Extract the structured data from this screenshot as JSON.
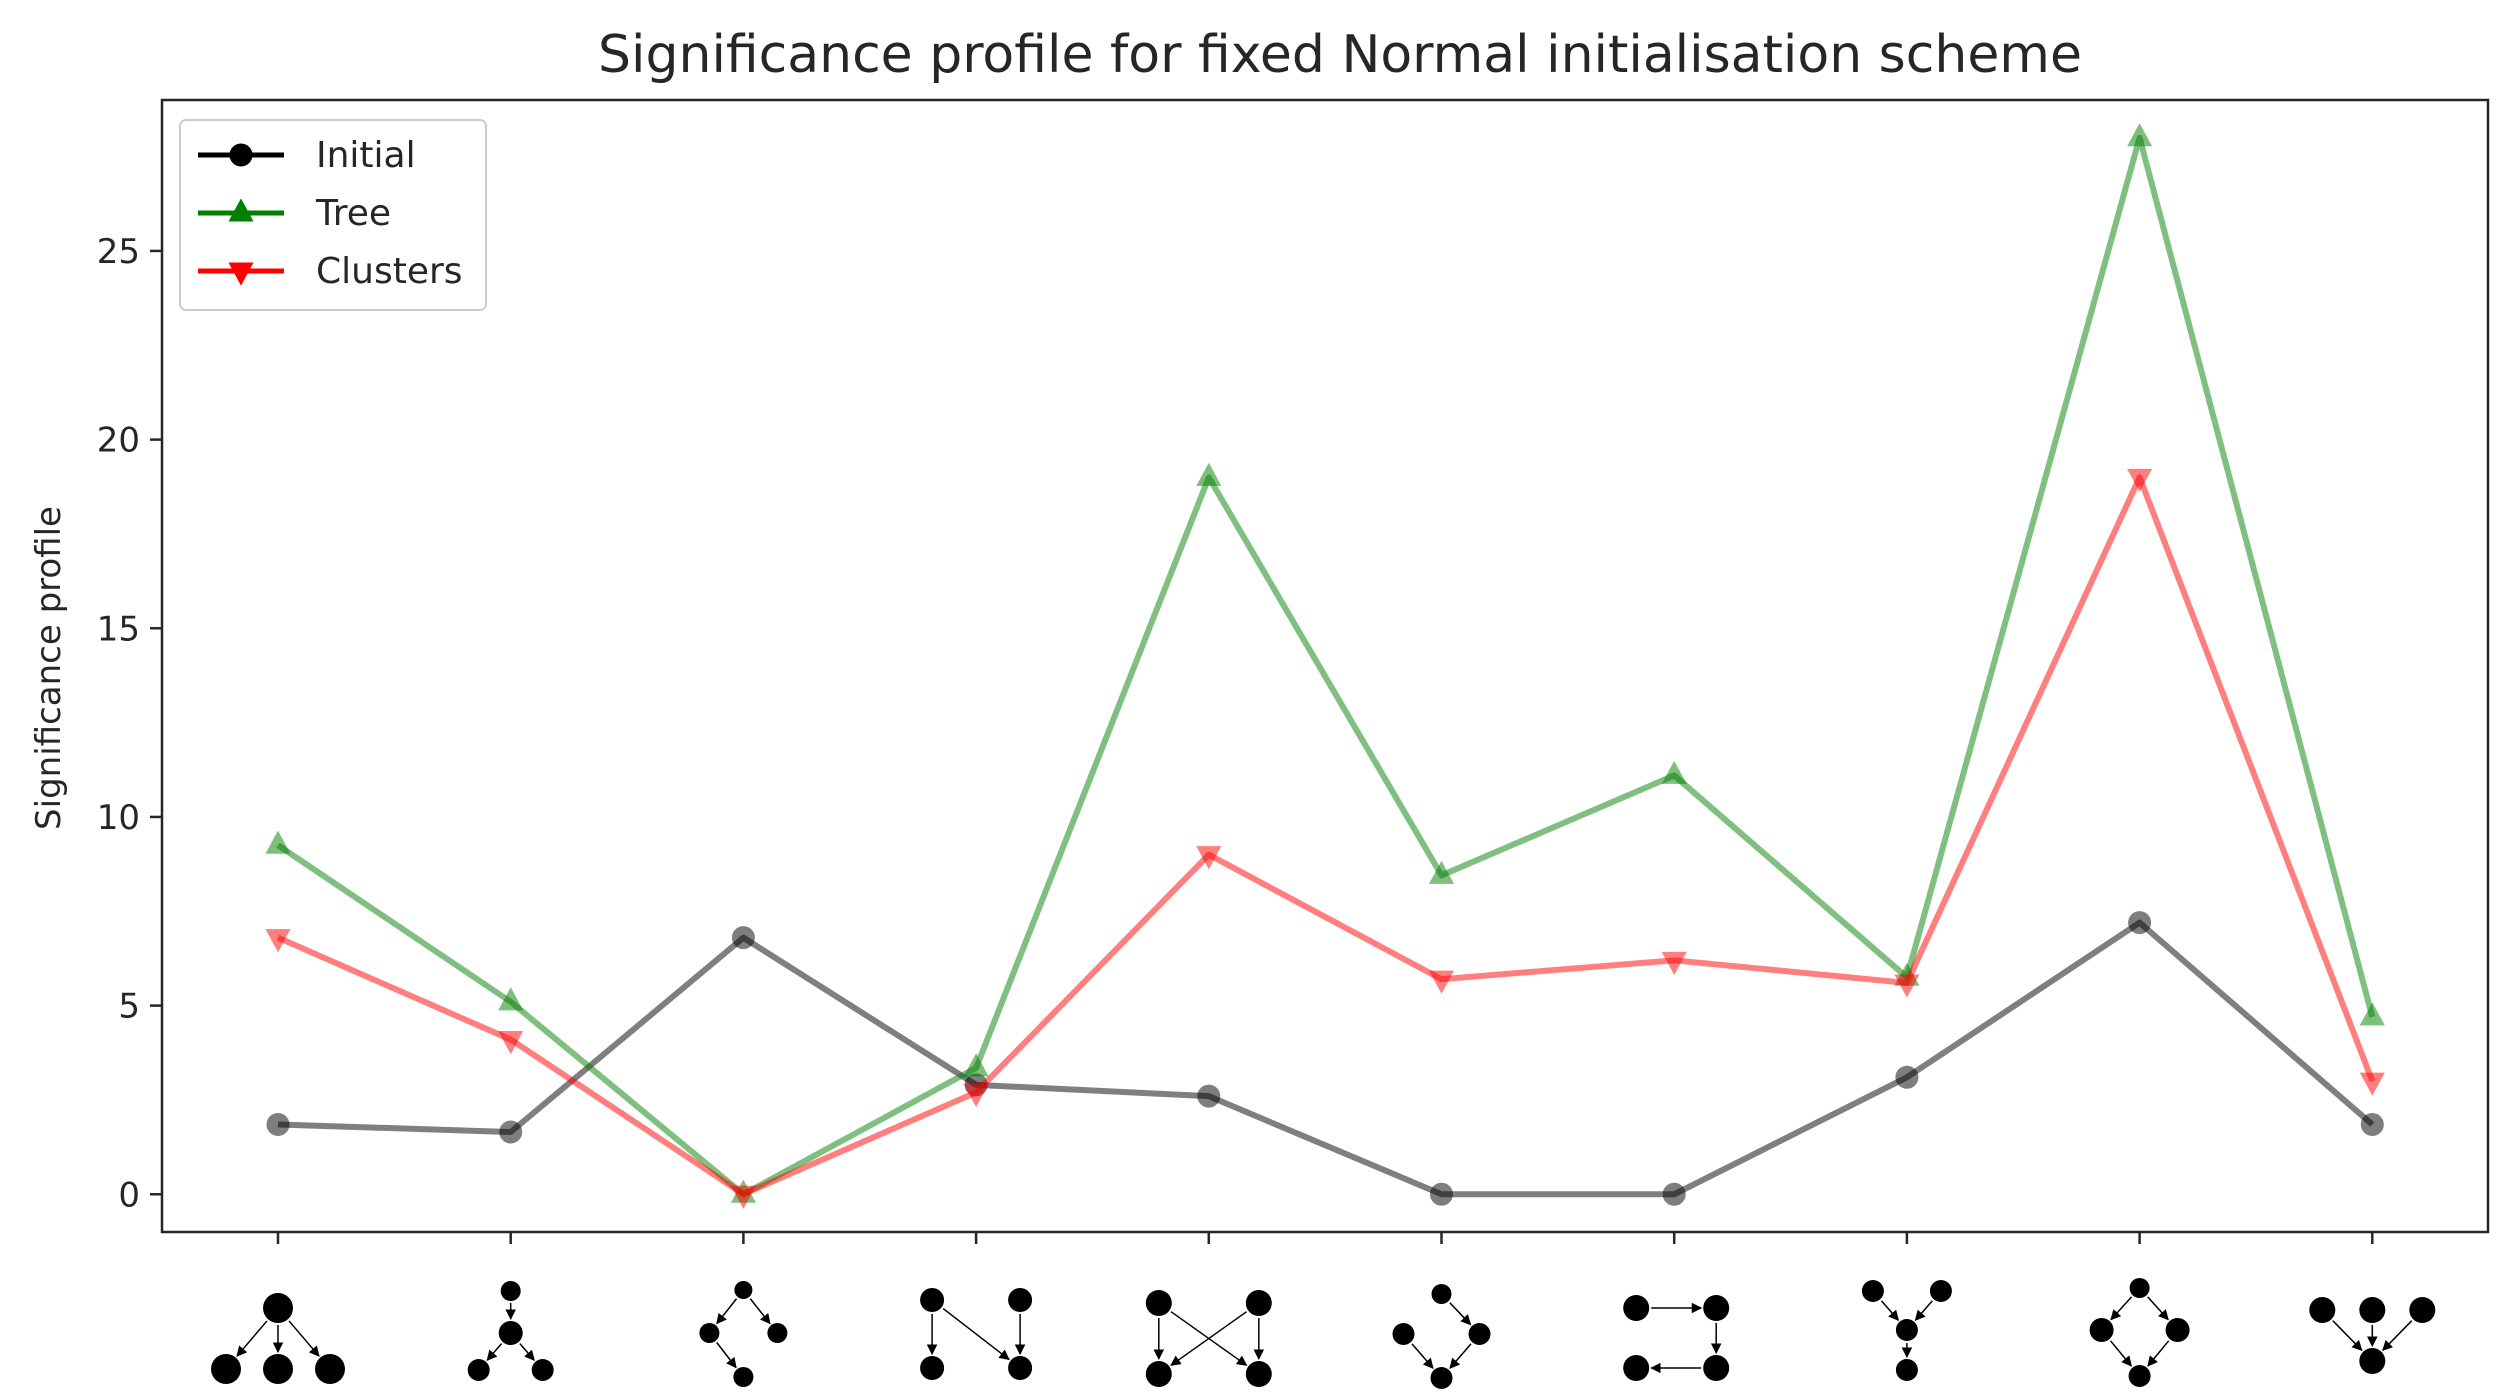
{
  "chart_data": {
    "type": "line",
    "title": "Significance profile for fixed Normal initialisation scheme",
    "xlabel": "",
    "ylabel": "Significance profile",
    "ylim": [
      -1,
      29
    ],
    "yticks": [
      0,
      5,
      10,
      15,
      20,
      25
    ],
    "grid": false,
    "legend_position": "top-left",
    "categories": [
      "motif-1",
      "motif-2",
      "motif-3",
      "motif-4",
      "motif-5",
      "motif-6",
      "motif-7",
      "motif-8",
      "motif-9",
      "motif-10"
    ],
    "series": [
      {
        "name": "Initial",
        "color": "#000000",
        "marker": "circle",
        "values": [
          1.85,
          1.65,
          6.8,
          2.9,
          2.6,
          0.0,
          0.0,
          3.1,
          7.2,
          1.85
        ]
      },
      {
        "name": "Tree",
        "color": "#008000",
        "marker": "triangle-up",
        "values": [
          9.25,
          5.1,
          0.0,
          3.35,
          19.0,
          8.45,
          11.1,
          5.75,
          28.0,
          4.7
        ]
      },
      {
        "name": "Clusters",
        "color": "#ff0000",
        "marker": "triangle-down",
        "values": [
          6.8,
          4.1,
          0.0,
          2.7,
          9.0,
          5.7,
          6.2,
          5.6,
          19.0,
          3.0
        ]
      }
    ],
    "x_tick_icons": [
      "motif-graph-icon-1",
      "motif-graph-icon-2",
      "motif-graph-icon-3",
      "motif-graph-icon-4",
      "motif-graph-icon-5",
      "motif-graph-icon-6",
      "motif-graph-icon-7",
      "motif-graph-icon-8",
      "motif-graph-icon-9",
      "motif-graph-icon-10"
    ]
  }
}
